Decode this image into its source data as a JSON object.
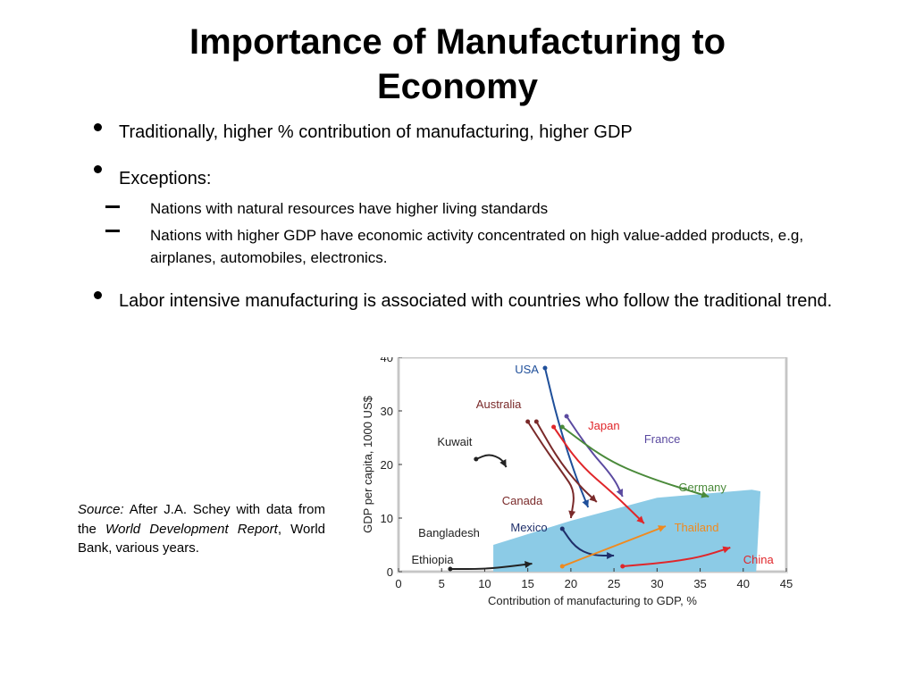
{
  "slide": {
    "title": "Importance of Manufacturing to Economy",
    "bullets": [
      "Traditionally, higher % contribution of manufacturing, higher GDP",
      "Exceptions:",
      "Labor intensive manufacturing is associated with countries who follow the traditional trend."
    ],
    "exceptions": [
      "Nations with natural resources have higher living standards",
      "Nations with higher GDP have economic activity concentrated on high value-added products, e.g, airplanes, automobiles, electronics."
    ],
    "source": {
      "label": "Source:",
      "text1": "After J.A. Schey with data from the",
      "italic": "World Development Report",
      "text2": ", World Bank, various years."
    }
  },
  "chart_data": {
    "type": "line",
    "xlabel": "Contribution of manufacturing to GDP, %",
    "ylabel": "GDP per capita, 1000 US$",
    "xlim": [
      0,
      45
    ],
    "ylim": [
      0,
      40
    ],
    "xticks": [
      0,
      5,
      10,
      15,
      20,
      25,
      30,
      35,
      40,
      45
    ],
    "yticks": [
      0,
      10,
      20,
      30,
      40
    ],
    "grid": false,
    "colors": {
      "band": "#8ccbe6",
      "usa": "#1f4f9a",
      "australia": "#7a2a2a",
      "japan": "#e0262a",
      "france": "#5b4aa0",
      "germany": "#4a8a3a",
      "kuwait": "#222222",
      "canada": "#7a2a2a",
      "mexico": "#1f2f6a",
      "thailand": "#f08a1e",
      "china": "#e0262a",
      "ethiopia": "#222222"
    },
    "series": [
      {
        "name": "USA",
        "label_at": [
          13.5,
          37
        ],
        "label_color": "#1f4f9a",
        "points": [
          [
            17,
            38
          ],
          [
            18.5,
            28
          ],
          [
            20.5,
            18
          ],
          [
            22,
            12
          ]
        ]
      },
      {
        "name": "Australia",
        "label_at": [
          9,
          30.5
        ],
        "label_color": "#7a2a2a",
        "points": [
          [
            16,
            28
          ],
          [
            18.5,
            21
          ],
          [
            21,
            16
          ],
          [
            23,
            13
          ]
        ]
      },
      {
        "name": "Japan",
        "label_at": [
          22,
          26.5
        ],
        "label_color": "#e0262a",
        "points": [
          [
            18,
            27
          ],
          [
            21,
            20
          ],
          [
            25,
            14.5
          ],
          [
            28.5,
            9
          ]
        ]
      },
      {
        "name": "France",
        "label_at": [
          28.5,
          24
        ],
        "label_color": "#5b4aa0",
        "points": [
          [
            19.5,
            29
          ],
          [
            22,
            23
          ],
          [
            25,
            17.5
          ],
          [
            26,
            14
          ]
        ]
      },
      {
        "name": "Germany",
        "label_at": [
          32.5,
          15
        ],
        "label_color": "#4a8a3a",
        "points": [
          [
            19,
            27
          ],
          [
            24,
            21
          ],
          [
            29,
            17.5
          ],
          [
            36,
            14
          ]
        ]
      },
      {
        "name": "Kuwait",
        "label_at": [
          4.5,
          23.5
        ],
        "label_color": "#222222",
        "points": [
          [
            9,
            21
          ],
          [
            10.5,
            22
          ],
          [
            12,
            21
          ],
          [
            12.5,
            19.5
          ]
        ]
      },
      {
        "name": "Canada",
        "label_at": [
          12,
          12.5
        ],
        "label_color": "#7a2a2a",
        "points": [
          [
            15,
            28
          ],
          [
            17,
            23
          ],
          [
            19,
            18.5
          ],
          [
            20.5,
            15
          ],
          [
            20,
            10
          ]
        ]
      },
      {
        "name": "Mexico",
        "label_at": [
          13,
          7.5
        ],
        "label_color": "#1f2f6a",
        "points": [
          [
            19,
            8
          ],
          [
            20.5,
            4.5
          ],
          [
            22.5,
            3
          ],
          [
            25,
            3
          ]
        ]
      },
      {
        "name": "Thailand",
        "label_at": [
          32,
          7.5
        ],
        "label_color": "#f08a1e",
        "points": [
          [
            19,
            1
          ],
          [
            23,
            3.5
          ],
          [
            27,
            6
          ],
          [
            31,
            8.5
          ]
        ]
      },
      {
        "name": "China",
        "label_at": [
          40,
          1.5
        ],
        "label_color": "#e0262a",
        "points": [
          [
            26,
            1
          ],
          [
            31,
            1.7
          ],
          [
            35,
            2.7
          ],
          [
            38.5,
            4.5
          ]
        ]
      },
      {
        "name": "Ethiopia",
        "label_at": [
          1.5,
          1.5
        ],
        "label_color": "#222222",
        "points": [
          [
            6,
            0.5
          ],
          [
            10,
            0.5
          ],
          [
            13,
            1
          ],
          [
            15.5,
            1.5
          ]
        ]
      },
      {
        "name": "Bangladesh",
        "label_at": [
          2.3,
          6.5
        ],
        "label_color": "#222222",
        "points": []
      }
    ],
    "band": [
      [
        11,
        0
      ],
      [
        11,
        5
      ],
      [
        20,
        9.5
      ],
      [
        30,
        13.8
      ],
      [
        41,
        15.3
      ],
      [
        42,
        15
      ],
      [
        41.5,
        0
      ]
    ]
  }
}
